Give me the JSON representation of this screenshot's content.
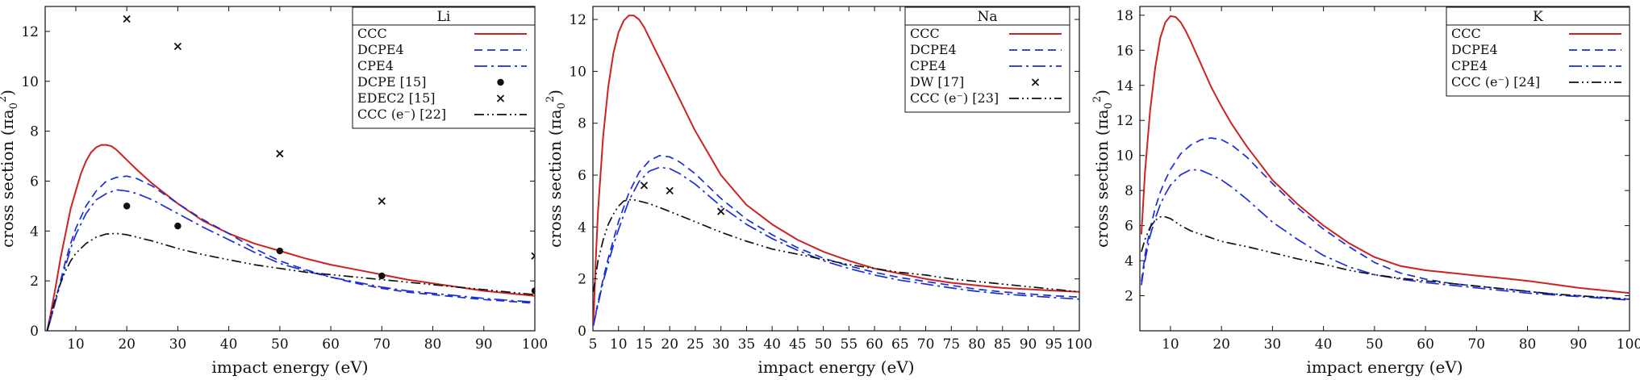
{
  "chart_data": [
    {
      "type": "line",
      "title": "Li",
      "xlabel": "impact energy (eV)",
      "ylabel_main": "cross section (πa",
      "ylabel_sub": "0",
      "ylabel_sup": "2",
      "ylabel_end": ")",
      "xlim": [
        4,
        100
      ],
      "ylim": [
        0,
        13
      ],
      "xticks": [
        10,
        20,
        30,
        40,
        50,
        60,
        70,
        80,
        90,
        100
      ],
      "yticks": [
        0,
        2,
        4,
        6,
        8,
        10,
        12
      ],
      "series": [
        {
          "name": "CCC",
          "style": "solid",
          "color": "#cc2222",
          "x": [
            4.4,
            5,
            6,
            7,
            8,
            9,
            10,
            11,
            12,
            13,
            14,
            15,
            16,
            17,
            18,
            19,
            20,
            22,
            25,
            30,
            35,
            40,
            45,
            50,
            55,
            60,
            65,
            70,
            75,
            80,
            85,
            90,
            95,
            100
          ],
          "y": [
            0,
            0.6,
            1.7,
            2.9,
            3.9,
            4.9,
            5.6,
            6.3,
            6.8,
            7.15,
            7.35,
            7.45,
            7.45,
            7.4,
            7.25,
            7.05,
            6.85,
            6.45,
            5.9,
            5.1,
            4.4,
            3.9,
            3.5,
            3.2,
            2.9,
            2.65,
            2.45,
            2.25,
            2.05,
            1.9,
            1.75,
            1.6,
            1.5,
            1.4
          ]
        },
        {
          "name": "DCPE4",
          "style": "dashed",
          "color": "#1a2fd6",
          "x": [
            4.4,
            5,
            6,
            7,
            8,
            9,
            10,
            12,
            14,
            16,
            18,
            20,
            22,
            25,
            30,
            35,
            40,
            45,
            50,
            55,
            60,
            65,
            70,
            75,
            80,
            85,
            90,
            95,
            100
          ],
          "y": [
            0,
            0.4,
            1.2,
            2.0,
            2.8,
            3.5,
            4.1,
            5.0,
            5.6,
            6.0,
            6.15,
            6.2,
            6.1,
            5.8,
            5.1,
            4.45,
            3.9,
            3.3,
            2.8,
            2.45,
            2.15,
            1.9,
            1.7,
            1.55,
            1.45,
            1.35,
            1.25,
            1.18,
            1.1
          ]
        },
        {
          "name": "CPE4",
          "style": "dashdot",
          "color": "#1a2fd6",
          "x": [
            4.4,
            5,
            6,
            7,
            8,
            9,
            10,
            12,
            14,
            16,
            18,
            20,
            22,
            25,
            30,
            35,
            40,
            45,
            50,
            55,
            60,
            65,
            70,
            75,
            80,
            85,
            90,
            95,
            100
          ],
          "y": [
            0,
            0.4,
            1.15,
            1.9,
            2.6,
            3.3,
            3.85,
            4.7,
            5.25,
            5.5,
            5.65,
            5.6,
            5.5,
            5.25,
            4.7,
            4.15,
            3.65,
            3.15,
            2.7,
            2.4,
            2.15,
            1.95,
            1.75,
            1.6,
            1.5,
            1.4,
            1.3,
            1.22,
            1.15
          ]
        },
        {
          "name": "DCPE [15]",
          "style": "dot-marker",
          "color": "#111111",
          "x": [
            20,
            30,
            50,
            70,
            100
          ],
          "y": [
            5.0,
            4.2,
            3.2,
            2.2,
            1.6
          ]
        },
        {
          "name": "EDEC2 [15]",
          "style": "cross-marker",
          "color": "#111111",
          "x": [
            20,
            30,
            50,
            70,
            100
          ],
          "y": [
            12.5,
            11.4,
            7.1,
            5.2,
            3.0
          ]
        },
        {
          "name": "CCC (e⁻) [22]",
          "style": "dashdotdot",
          "color": "#111111",
          "x": [
            4.4,
            5,
            6,
            7,
            8,
            9,
            10,
            12,
            14,
            16,
            18,
            20,
            22,
            25,
            30,
            35,
            40,
            45,
            50,
            55,
            60,
            65,
            70,
            75,
            80,
            85,
            90,
            95,
            100
          ],
          "y": [
            0,
            0.5,
            1.3,
            1.9,
            2.4,
            2.8,
            3.1,
            3.5,
            3.75,
            3.88,
            3.9,
            3.85,
            3.75,
            3.6,
            3.3,
            3.05,
            2.85,
            2.65,
            2.5,
            2.35,
            2.25,
            2.15,
            2.05,
            1.95,
            1.85,
            1.75,
            1.65,
            1.55,
            1.45
          ]
        }
      ]
    },
    {
      "type": "line",
      "title": "Na",
      "xlabel": "impact energy (eV)",
      "ylabel_main": "cross section (πa",
      "ylabel_sub": "0",
      "ylabel_sup": "2",
      "ylabel_end": ")",
      "xlim": [
        5,
        100
      ],
      "ylim": [
        0,
        12.5
      ],
      "xticks": [
        5,
        10,
        15,
        20,
        25,
        30,
        35,
        40,
        45,
        50,
        55,
        60,
        65,
        70,
        75,
        80,
        85,
        90,
        95,
        100
      ],
      "yticks": [
        0,
        2,
        4,
        6,
        8,
        10,
        12
      ],
      "series": [
        {
          "name": "CCC",
          "style": "solid",
          "color": "#cc2222",
          "x": [
            5.1,
            5.5,
            6,
            7,
            8,
            9,
            10,
            11,
            12,
            13,
            14,
            15,
            16,
            18,
            20,
            22,
            25,
            30,
            35,
            40,
            45,
            50,
            55,
            60,
            65,
            70,
            75,
            80,
            85,
            90,
            95,
            100
          ],
          "y": [
            0.2,
            2.5,
            4.6,
            7.5,
            9.4,
            10.7,
            11.5,
            11.95,
            12.15,
            12.15,
            12.0,
            11.7,
            11.3,
            10.5,
            9.7,
            8.9,
            7.7,
            6.0,
            4.85,
            4.1,
            3.5,
            3.05,
            2.7,
            2.4,
            2.2,
            2.0,
            1.85,
            1.75,
            1.65,
            1.6,
            1.55,
            1.5
          ]
        },
        {
          "name": "DCPE4",
          "style": "dashed",
          "color": "#1a2fd6",
          "x": [
            5.1,
            6,
            7,
            8,
            9,
            10,
            12,
            14,
            16,
            18,
            20,
            22,
            25,
            30,
            35,
            40,
            45,
            50,
            55,
            60,
            65,
            70,
            75,
            80,
            85,
            90,
            95,
            100
          ],
          "y": [
            0.2,
            1.1,
            2.0,
            2.8,
            3.5,
            4.2,
            5.3,
            6.1,
            6.55,
            6.75,
            6.7,
            6.5,
            6.05,
            5.1,
            4.3,
            3.7,
            3.2,
            2.8,
            2.5,
            2.25,
            2.05,
            1.9,
            1.75,
            1.6,
            1.5,
            1.42,
            1.35,
            1.3
          ]
        },
        {
          "name": "CPE4",
          "style": "dashdot",
          "color": "#1a2fd6",
          "x": [
            5.1,
            6,
            7,
            8,
            9,
            10,
            12,
            14,
            16,
            18,
            20,
            22,
            25,
            30,
            35,
            40,
            45,
            50,
            55,
            60,
            65,
            70,
            75,
            80,
            85,
            90,
            95,
            100
          ],
          "y": [
            0.2,
            1.0,
            1.9,
            2.6,
            3.3,
            3.9,
            5.0,
            5.75,
            6.15,
            6.3,
            6.25,
            6.05,
            5.65,
            4.8,
            4.1,
            3.55,
            3.1,
            2.7,
            2.4,
            2.15,
            1.95,
            1.8,
            1.65,
            1.52,
            1.42,
            1.35,
            1.28,
            1.22
          ]
        },
        {
          "name": "DW [17]",
          "style": "cross-marker",
          "color": "#111111",
          "x": [
            15,
            20,
            30
          ],
          "y": [
            5.6,
            5.4,
            4.6
          ]
        },
        {
          "name": "CCC (e⁻) [23]",
          "style": "dashdotdot",
          "color": "#111111",
          "x": [
            5.1,
            6,
            7,
            8,
            9,
            10,
            11,
            12,
            13,
            14,
            16,
            18,
            20,
            25,
            30,
            35,
            40,
            45,
            50,
            55,
            60,
            65,
            70,
            75,
            80,
            85,
            90,
            95,
            100
          ],
          "y": [
            1.5,
            2.7,
            3.5,
            4.1,
            4.5,
            4.8,
            5.0,
            5.05,
            5.05,
            5.0,
            4.9,
            4.75,
            4.6,
            4.2,
            3.8,
            3.45,
            3.15,
            2.95,
            2.75,
            2.55,
            2.4,
            2.25,
            2.15,
            2.0,
            1.9,
            1.8,
            1.7,
            1.6,
            1.5
          ]
        }
      ]
    },
    {
      "type": "line",
      "title": "K",
      "xlabel": "impact energy (eV)",
      "ylabel_main": "cross section (πa",
      "ylabel_sub": "0",
      "ylabel_sup": "2",
      "ylabel_end": ")",
      "xlim": [
        4,
        100
      ],
      "ylim": [
        0,
        18.5
      ],
      "xticks": [
        10,
        20,
        30,
        40,
        50,
        60,
        70,
        80,
        90,
        100
      ],
      "yticks": [
        2,
        4,
        6,
        8,
        10,
        12,
        14,
        16,
        18
      ],
      "series": [
        {
          "name": "CCC",
          "style": "solid",
          "color": "#cc2222",
          "x": [
            4.3,
            5,
            6,
            7,
            8,
            9,
            10,
            11,
            12,
            13,
            14,
            16,
            18,
            20,
            22,
            25,
            30,
            35,
            40,
            45,
            50,
            55,
            60,
            65,
            70,
            75,
            80,
            85,
            90,
            95,
            100
          ],
          "y": [
            5.5,
            9.0,
            12.5,
            15.0,
            16.7,
            17.6,
            17.95,
            17.9,
            17.6,
            17.1,
            16.5,
            15.2,
            13.9,
            12.8,
            11.8,
            10.5,
            8.6,
            7.2,
            6.0,
            5.0,
            4.2,
            3.7,
            3.45,
            3.3,
            3.15,
            3.0,
            2.85,
            2.65,
            2.45,
            2.3,
            2.15
          ]
        },
        {
          "name": "DCPE4",
          "style": "dashed",
          "color": "#1a2fd6",
          "x": [
            4.3,
            5,
            6,
            7,
            8,
            9,
            10,
            12,
            14,
            16,
            18,
            20,
            22,
            25,
            30,
            35,
            40,
            45,
            50,
            55,
            60,
            65,
            70,
            75,
            80,
            85,
            90,
            95,
            100
          ],
          "y": [
            2.8,
            4.3,
            5.8,
            7.0,
            7.9,
            8.6,
            9.2,
            10.1,
            10.6,
            10.9,
            11.0,
            10.9,
            10.6,
            9.9,
            8.4,
            7.0,
            5.8,
            4.8,
            3.9,
            3.3,
            2.95,
            2.7,
            2.55,
            2.4,
            2.25,
            2.1,
            2.0,
            1.9,
            1.8
          ]
        },
        {
          "name": "CPE4",
          "style": "dashdot",
          "color": "#1a2fd6",
          "x": [
            4.3,
            5,
            6,
            7,
            8,
            9,
            10,
            12,
            14,
            16,
            18,
            20,
            22,
            25,
            30,
            35,
            40,
            45,
            50,
            55,
            60,
            65,
            70,
            75,
            80,
            85,
            90,
            95,
            100
          ],
          "y": [
            2.6,
            4.0,
            5.4,
            6.4,
            7.2,
            7.8,
            8.3,
            8.9,
            9.2,
            9.15,
            8.9,
            8.6,
            8.2,
            7.5,
            6.2,
            5.2,
            4.3,
            3.65,
            3.2,
            2.95,
            2.75,
            2.6,
            2.45,
            2.3,
            2.15,
            2.05,
            1.95,
            1.85,
            1.75
          ]
        },
        {
          "name": "CCC (e⁻) [24]",
          "style": "dashdotdot",
          "color": "#111111",
          "x": [
            4.3,
            5,
            6,
            7,
            8,
            9,
            10,
            11,
            12,
            14,
            16,
            18,
            20,
            25,
            30,
            35,
            40,
            45,
            50,
            55,
            60,
            65,
            70,
            75,
            80,
            85,
            90,
            95,
            100
          ],
          "y": [
            4.5,
            5.2,
            5.9,
            6.3,
            6.5,
            6.5,
            6.4,
            6.2,
            6.0,
            5.7,
            5.5,
            5.3,
            5.1,
            4.8,
            4.45,
            4.1,
            3.8,
            3.45,
            3.2,
            3.0,
            2.85,
            2.7,
            2.55,
            2.4,
            2.25,
            2.1,
            2.0,
            1.9,
            1.8
          ]
        }
      ]
    }
  ]
}
